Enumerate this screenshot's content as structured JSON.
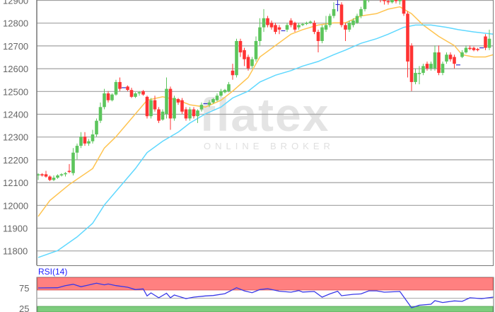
{
  "chart_data": [
    {
      "type": "candlestick",
      "title": "",
      "ylim": [
        11735,
        12900
      ],
      "y_ticks": [
        "12900",
        "12800",
        "12700",
        "12600",
        "12500",
        "12400",
        "12300",
        "12200",
        "12100",
        "12000",
        "11900",
        "11800"
      ],
      "grid": true,
      "colors": {
        "up": "#5cc55c",
        "down": "#ff3333",
        "doji": "#3030d0",
        "ma_fast": "#ffc450",
        "ma_slow": "#5fd8ff",
        "grid": "#a0a0a0"
      },
      "candles_ohlc": [
        [
          12130,
          12140,
          12110,
          12135
        ],
        [
          12135,
          12140,
          12125,
          12130
        ],
        [
          12135,
          12150,
          12120,
          12125
        ],
        [
          12125,
          12130,
          12105,
          12110
        ],
        [
          12110,
          12130,
          12105,
          12120
        ],
        [
          12120,
          12135,
          12115,
          12130
        ],
        [
          12130,
          12140,
          12125,
          12135
        ],
        [
          12135,
          12145,
          12125,
          12140
        ],
        [
          12150,
          12180,
          12140,
          12145
        ],
        [
          12140,
          12250,
          12130,
          12230
        ],
        [
          12230,
          12270,
          12200,
          12260
        ],
        [
          12260,
          12320,
          12250,
          12300
        ],
        [
          12300,
          12320,
          12260,
          12270
        ],
        [
          12270,
          12290,
          12260,
          12280
        ],
        [
          12280,
          12330,
          12270,
          12310
        ],
        [
          12310,
          12380,
          12300,
          12370
        ],
        [
          12370,
          12450,
          12360,
          12430
        ],
        [
          12430,
          12510,
          12420,
          12490
        ],
        [
          12490,
          12500,
          12450,
          12460
        ],
        [
          12460,
          12490,
          12455,
          12485
        ],
        [
          12485,
          12550,
          12480,
          12540
        ],
        [
          12540,
          12560,
          12500,
          12510
        ],
        [
          12515,
          12515,
          12515,
          12515
        ],
        [
          12520,
          12525,
          12500,
          12505
        ],
        [
          12505,
          12515,
          12470,
          12475
        ],
        [
          12475,
          12495,
          12470,
          12490
        ],
        [
          12490,
          12500,
          12480,
          12495
        ],
        [
          12500,
          12505,
          12480,
          12485
        ],
        [
          12475,
          12480,
          12380,
          12390
        ],
        [
          12390,
          12470,
          12380,
          12460
        ],
        [
          12460,
          12480,
          12410,
          12420
        ],
        [
          12420,
          12430,
          12360,
          12370
        ],
        [
          12375,
          12420,
          12370,
          12410
        ],
        [
          12400,
          12560,
          12380,
          12510
        ],
        [
          12510,
          12520,
          12330,
          12380
        ],
        [
          12380,
          12480,
          12370,
          12470
        ],
        [
          12465,
          12470,
          12440,
          12450
        ],
        [
          12460,
          12470,
          12400,
          12410
        ],
        [
          12420,
          12430,
          12370,
          12380
        ],
        [
          12380,
          12430,
          12370,
          12420
        ],
        [
          12420,
          12430,
          12380,
          12390
        ],
        [
          12390,
          12420,
          12360,
          12415
        ],
        [
          12420,
          12450,
          12410,
          12440
        ],
        [
          12445,
          12445,
          12445,
          12445
        ],
        [
          12440,
          12460,
          12430,
          12450
        ],
        [
          12450,
          12470,
          12445,
          12465
        ],
        [
          12460,
          12490,
          12455,
          12480
        ],
        [
          12480,
          12510,
          12475,
          12500
        ],
        [
          12495,
          12510,
          12490,
          12505
        ],
        [
          12500,
          12540,
          12495,
          12530
        ],
        [
          12590,
          12620,
          12550,
          12570
        ],
        [
          12570,
          12730,
          12560,
          12720
        ],
        [
          12720,
          12730,
          12650,
          12670
        ],
        [
          12680,
          12690,
          12610,
          12640
        ],
        [
          12650,
          12660,
          12590,
          12600
        ],
        [
          12610,
          12650,
          12600,
          12640
        ],
        [
          12640,
          12740,
          12630,
          12720
        ],
        [
          12720,
          12820,
          12700,
          12780
        ],
        [
          12780,
          12860,
          12760,
          12820
        ],
        [
          12820,
          12830,
          12780,
          12790
        ],
        [
          12800,
          12810,
          12770,
          12780
        ],
        [
          12790,
          12800,
          12750,
          12760
        ],
        [
          12780,
          12790,
          12750,
          12770
        ],
        [
          12765,
          12765,
          12765,
          12765
        ],
        [
          12770,
          12800,
          12760,
          12790
        ],
        [
          12810,
          12820,
          12780,
          12790
        ],
        [
          12800,
          12805,
          12760,
          12770
        ],
        [
          12780,
          12800,
          12770,
          12790
        ],
        [
          12790,
          12800,
          12785,
          12795
        ],
        [
          12795,
          12805,
          12790,
          12800
        ],
        [
          12800,
          12810,
          12795,
          12805
        ],
        [
          12800,
          12810,
          12750,
          12760
        ],
        [
          12760,
          12770,
          12670,
          12720
        ],
        [
          12720,
          12790,
          12710,
          12780
        ],
        [
          12770,
          12830,
          12760,
          12790
        ],
        [
          12790,
          12840,
          12780,
          12830
        ],
        [
          12830,
          12890,
          12820,
          12860
        ],
        [
          12880,
          12900,
          12850,
          12880
        ],
        [
          12880,
          12890,
          12780,
          12790
        ],
        [
          12790,
          12800,
          12720,
          12770
        ],
        [
          12770,
          12810,
          12760,
          12800
        ],
        [
          12790,
          12820,
          12780,
          12810
        ],
        [
          12800,
          12840,
          12795,
          12830
        ],
        [
          12830,
          12870,
          12820,
          12860
        ],
        [
          12860,
          12920,
          12850,
          12900
        ],
        [
          12900,
          12940,
          12890,
          12930
        ],
        [
          12930,
          12950,
          12910,
          12920
        ],
        [
          12920,
          12940,
          12900,
          12930
        ],
        [
          12930,
          12940,
          12890,
          12900
        ],
        [
          12900,
          12910,
          12880,
          12895
        ],
        [
          12895,
          12905,
          12880,
          12890
        ],
        [
          12890,
          12905,
          12885,
          12900
        ],
        [
          12900,
          12905,
          12885,
          12895
        ],
        [
          12895,
          12920,
          12880,
          12910
        ],
        [
          12910,
          12920,
          12830,
          12840
        ],
        [
          12840,
          12850,
          12560,
          12630
        ],
        [
          12700,
          12710,
          12500,
          12540
        ],
        [
          12540,
          12600,
          12530,
          12580
        ],
        [
          12575,
          12610,
          12530,
          12580
        ],
        [
          12580,
          12620,
          12570,
          12610
        ],
        [
          12620,
          12630,
          12590,
          12600
        ],
        [
          12600,
          12630,
          12590,
          12620
        ],
        [
          12600,
          12700,
          12590,
          12670
        ],
        [
          12670,
          12700,
          12570,
          12580
        ],
        [
          12580,
          12630,
          12570,
          12620
        ],
        [
          12630,
          12670,
          12620,
          12660
        ],
        [
          12660,
          12670,
          12630,
          12640
        ],
        [
          12650,
          12660,
          12600,
          12620
        ],
        [
          12615,
          12615,
          12615,
          12615
        ],
        [
          12650,
          12680,
          12645,
          12670
        ],
        [
          12670,
          12700,
          12665,
          12690
        ],
        [
          12690,
          12700,
          12680,
          12685
        ],
        [
          12690,
          12695,
          12675,
          12680
        ],
        [
          12685,
          12690,
          12675,
          12680
        ],
        [
          12690,
          12690,
          12690,
          12690
        ],
        [
          12740,
          12750,
          12680,
          12690
        ],
        [
          12690,
          12770,
          12680,
          12730
        ]
      ],
      "ma_fast": [
        [
          0,
          11950
        ],
        [
          3,
          12020
        ],
        [
          8,
          12090
        ],
        [
          14,
          12160
        ],
        [
          17,
          12250
        ],
        [
          20,
          12300
        ],
        [
          25,
          12400
        ],
        [
          28,
          12460
        ],
        [
          32,
          12475
        ],
        [
          36,
          12460
        ],
        [
          39,
          12440
        ],
        [
          43,
          12430
        ],
        [
          47,
          12460
        ],
        [
          50,
          12500
        ],
        [
          54,
          12560
        ],
        [
          57,
          12650
        ],
        [
          61,
          12700
        ],
        [
          65,
          12750
        ],
        [
          68,
          12770
        ],
        [
          72,
          12790
        ],
        [
          76,
          12800
        ],
        [
          79,
          12800
        ],
        [
          83,
          12830
        ],
        [
          87,
          12840
        ],
        [
          90,
          12860
        ],
        [
          93,
          12870
        ],
        [
          96,
          12840
        ],
        [
          99,
          12790
        ],
        [
          103,
          12740
        ],
        [
          107,
          12700
        ],
        [
          109,
          12660
        ],
        [
          112,
          12650
        ],
        [
          115,
          12650
        ],
        [
          117,
          12660
        ]
      ],
      "ma_slow": [
        [
          0,
          11770
        ],
        [
          5,
          11800
        ],
        [
          10,
          11860
        ],
        [
          14,
          11920
        ],
        [
          17,
          12000
        ],
        [
          21,
          12080
        ],
        [
          25,
          12160
        ],
        [
          28,
          12230
        ],
        [
          32,
          12280
        ],
        [
          36,
          12320
        ],
        [
          39,
          12360
        ],
        [
          43,
          12400
        ],
        [
          47,
          12430
        ],
        [
          50,
          12470
        ],
        [
          54,
          12500
        ],
        [
          57,
          12540
        ],
        [
          61,
          12570
        ],
        [
          65,
          12590
        ],
        [
          68,
          12610
        ],
        [
          72,
          12630
        ],
        [
          76,
          12660
        ],
        [
          79,
          12680
        ],
        [
          83,
          12710
        ],
        [
          87,
          12730
        ],
        [
          90,
          12750
        ],
        [
          94,
          12780
        ],
        [
          97,
          12790
        ],
        [
          101,
          12790
        ],
        [
          105,
          12780
        ],
        [
          108,
          12770
        ],
        [
          112,
          12760
        ],
        [
          117,
          12750
        ]
      ]
    },
    {
      "type": "line",
      "title": "RSI(14)",
      "ylim": [
        17,
        100
      ],
      "y_ticks": [
        "75",
        "25"
      ],
      "bands": {
        "overbought": [
          70,
          100
        ],
        "oversold": [
          0,
          30
        ],
        "midline": 50
      },
      "colors": {
        "line": "#3838e8",
        "overbought": "#ff8080",
        "oversold": "#7dcc7d"
      },
      "values": [
        [
          0,
          75
        ],
        [
          5,
          75.5
        ],
        [
          7,
          80.7
        ],
        [
          9,
          84
        ],
        [
          11,
          78
        ],
        [
          15,
          86.5
        ],
        [
          17,
          82.5
        ],
        [
          18,
          84.7
        ],
        [
          20,
          80.7
        ],
        [
          23,
          76.7
        ],
        [
          25,
          71
        ],
        [
          27,
          72.7
        ],
        [
          28,
          55.5
        ],
        [
          29,
          63
        ],
        [
          31,
          51
        ],
        [
          33,
          62
        ],
        [
          34,
          51
        ],
        [
          35,
          57.8
        ],
        [
          38,
          49
        ],
        [
          40,
          52.6
        ],
        [
          43,
          55.5
        ],
        [
          45,
          56.6
        ],
        [
          48,
          61
        ],
        [
          51,
          75.6
        ],
        [
          53,
          68
        ],
        [
          55,
          63.5
        ],
        [
          57,
          71
        ],
        [
          59,
          73.3
        ],
        [
          62,
          67
        ],
        [
          65,
          64.7
        ],
        [
          67,
          68.7
        ],
        [
          68,
          65
        ],
        [
          71,
          66.4
        ],
        [
          73,
          52.6
        ],
        [
          75,
          60.6
        ],
        [
          77,
          67
        ],
        [
          78,
          56
        ],
        [
          81,
          59.5
        ],
        [
          83,
          60.6
        ],
        [
          85,
          68
        ],
        [
          87,
          68
        ],
        [
          89,
          64.7
        ],
        [
          93,
          66.4
        ],
        [
          96,
          26.7
        ],
        [
          98,
          33
        ],
        [
          101,
          35.3
        ],
        [
          102,
          44
        ],
        [
          104,
          39.4
        ],
        [
          107,
          43.4
        ],
        [
          109,
          42.2
        ],
        [
          111,
          51
        ],
        [
          114,
          49
        ],
        [
          117,
          52.6
        ]
      ]
    }
  ],
  "watermark": {
    "logo": "flatex",
    "tagline": "ONLINE BROKER"
  }
}
